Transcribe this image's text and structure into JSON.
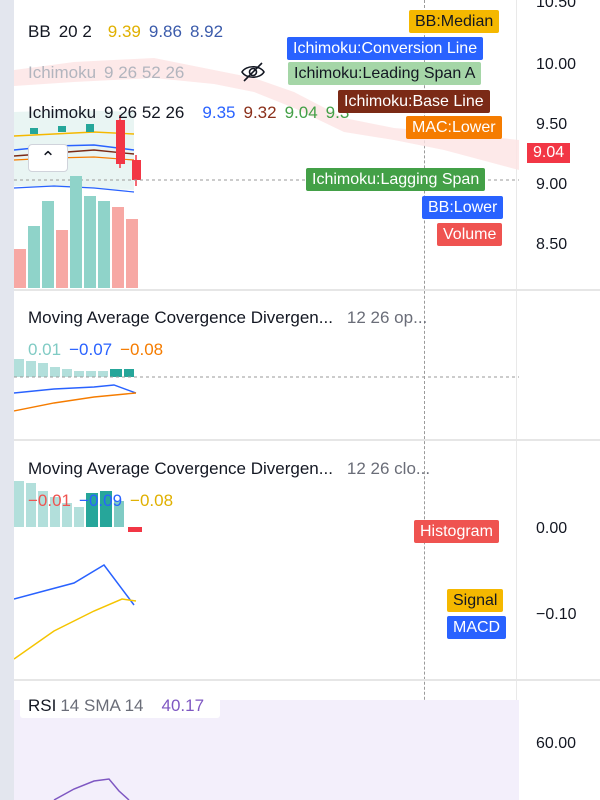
{
  "bb_legend": {
    "name": "BB",
    "params": "20 2",
    "v1": "9.39",
    "v2": "9.86",
    "v3": "8.92",
    "c1": "#e0b000",
    "c2": "#3b5bab",
    "c3": "#3b5bab"
  },
  "ichimoku_legend_hidden": {
    "name": "Ichimoku",
    "params": "9 26 52 26"
  },
  "ichimoku_legend": {
    "name": "Ichimoku",
    "params": "9 26 52 26",
    "v1": "9.35",
    "v2": "9.32",
    "v3": "9.04",
    "v4": "9.3",
    "c1": "#2962ff",
    "c2": "#8a2f1a",
    "c3": "#43a047",
    "c4": "#43a047"
  },
  "price_axis": {
    "ticks": [
      "10.50",
      "10.00",
      "9.50",
      "9.00",
      "8.50"
    ],
    "last_price": "9.04"
  },
  "overlay_tags": [
    {
      "label": "BB:Median",
      "bg": "#f5b800",
      "fg": "#131722"
    },
    {
      "label": "Ichimoku:Conversion Line",
      "bg": "#2962ff",
      "fg": "#ffffff"
    },
    {
      "label": "Ichimoku:Leading Span A",
      "bg": "#a5d6a7",
      "fg": "#131722"
    },
    {
      "label": "Ichimoku:Base Line",
      "bg": "#7b2a16",
      "fg": "#ffffff"
    },
    {
      "label": "MAC:Lower",
      "bg": "#f57c00",
      "fg": "#ffffff"
    },
    {
      "label": "Ichimoku:Lagging Span",
      "bg": "#43a047",
      "fg": "#ffffff"
    },
    {
      "label": "BB:Lower",
      "bg": "#2962ff",
      "fg": "#ffffff"
    },
    {
      "label": "Volume",
      "bg": "#ef5350",
      "fg": "#ffffff"
    }
  ],
  "macd1": {
    "title": "Moving Average Covergence Divergen...",
    "params": "12 26 op...",
    "v1": "0.01",
    "v2": "−0.07",
    "v3": "−0.08",
    "c1": "#80cbc4",
    "c2": "#2962ff",
    "c3": "#f57c00"
  },
  "macd2": {
    "title": "Moving Average Covergence Divergen...",
    "params": "12 26 clo...",
    "v1": "−0.01",
    "v2": "−0.09",
    "v3": "−0.08",
    "c1": "#ef5350",
    "c2": "#2962ff",
    "c3": "#e0b000",
    "ticks": [
      "0.00",
      "−0.10"
    ]
  },
  "macd2_tags": [
    {
      "label": "Histogram",
      "bg": "#ef5350",
      "fg": "#ffffff"
    },
    {
      "label": "Signal",
      "bg": "#f5b800",
      "fg": "#131722"
    },
    {
      "label": "MACD",
      "bg": "#2962ff",
      "fg": "#ffffff"
    }
  ],
  "rsi": {
    "name": "RSI",
    "params": "14 SMA 14",
    "value": "40.17",
    "value_color": "#7e57c2",
    "ticks": [
      "60.00"
    ]
  },
  "volume": {
    "values": [
      0.35,
      0.55,
      0.78,
      0.52,
      1.0,
      0.82,
      0.78,
      0.72,
      0.62
    ],
    "colors": [
      "#f7a8a4",
      "#8fd3c9",
      "#8fd3c9",
      "#f7a8a4",
      "#8fd3c9",
      "#8fd3c9",
      "#8fd3c9",
      "#f7a8a4",
      "#f7a8a4"
    ]
  }
}
